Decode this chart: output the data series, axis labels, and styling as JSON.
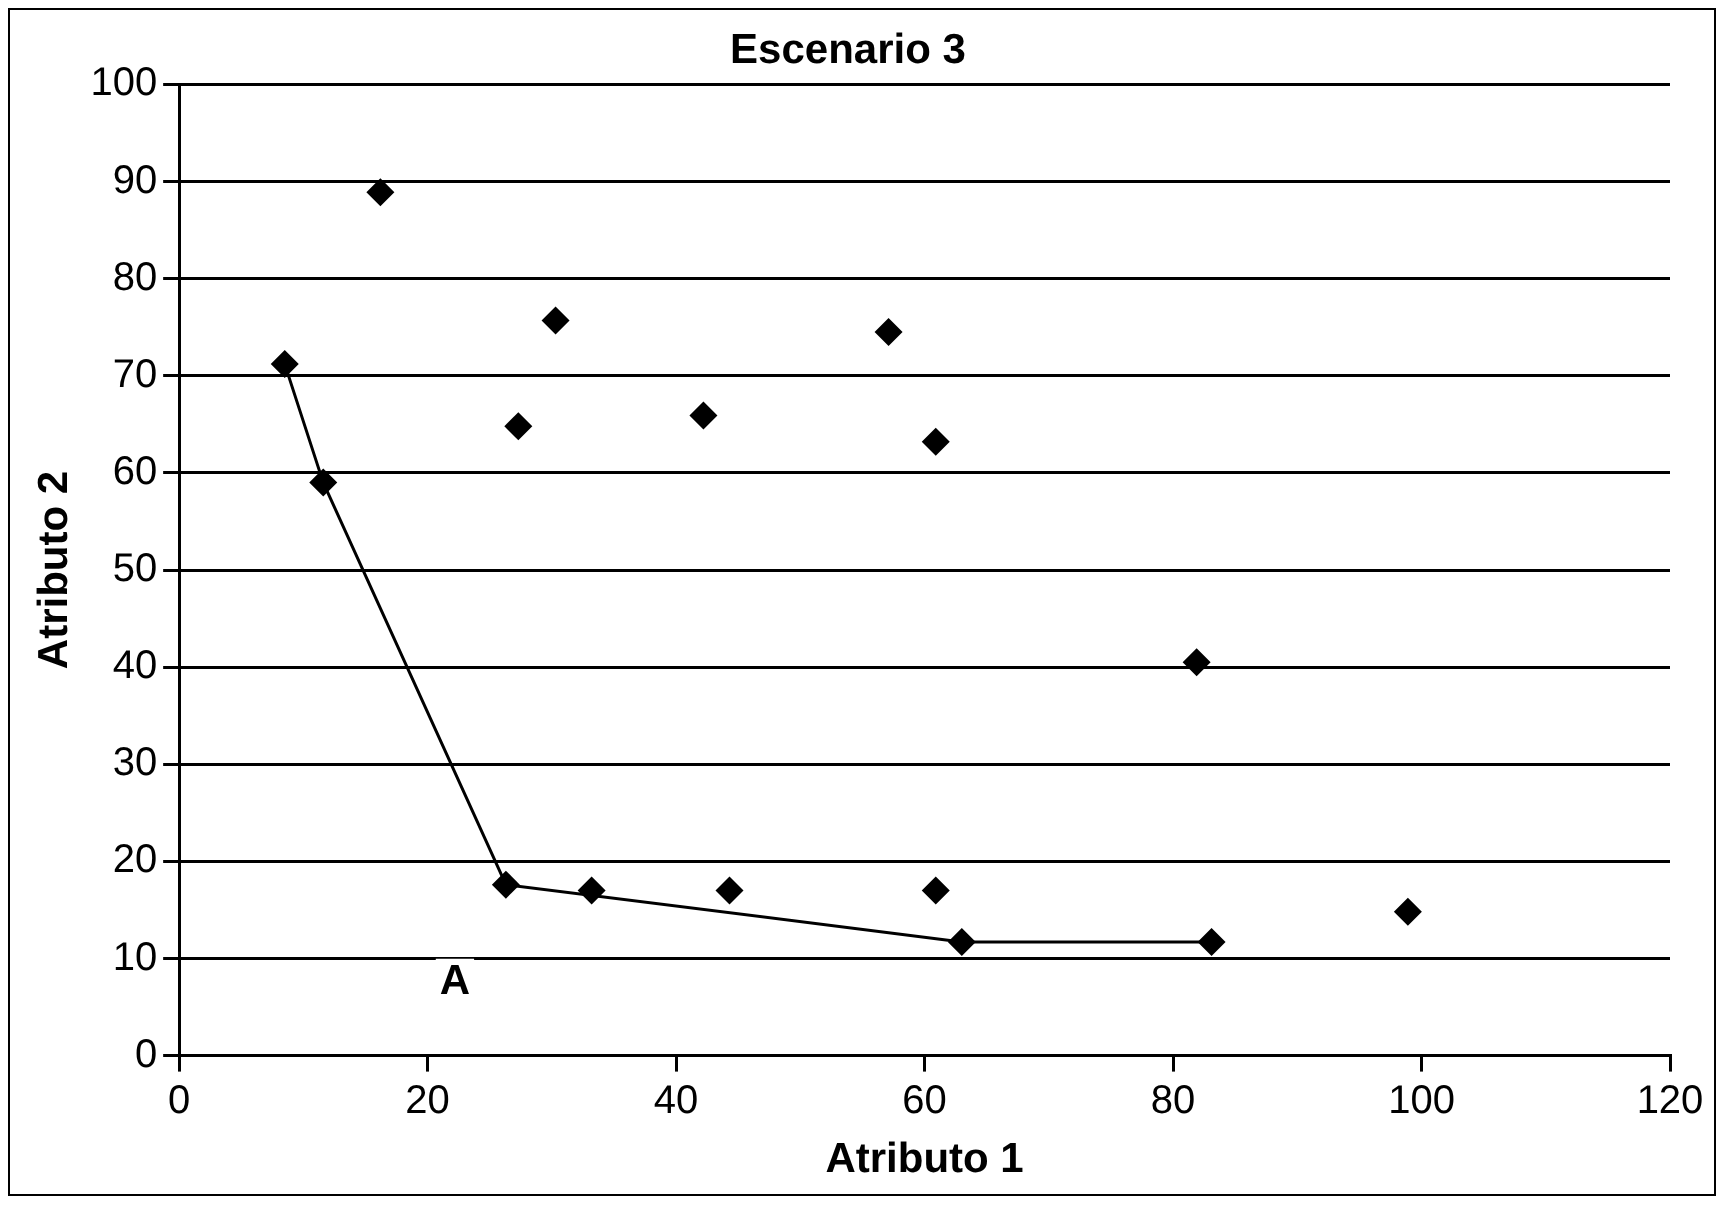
{
  "chart_data": {
    "type": "scatter",
    "title": "Escenario 3",
    "xlabel": "Atributo 1",
    "ylabel": "Atributo 2",
    "xlim": [
      0,
      120
    ],
    "xticks": [
      0,
      20,
      40,
      60,
      80,
      100,
      120
    ],
    "ylim": [
      0,
      100
    ],
    "yticks": [
      0,
      10,
      20,
      30,
      40,
      50,
      60,
      70,
      80,
      90,
      100
    ],
    "grid": "y",
    "legend": false,
    "marker": "diamond",
    "series": [
      {
        "type": "line",
        "color": "#000000",
        "x": [
          8.5,
          11.6,
          26.3,
          63,
          83.1
        ],
        "values": [
          71.2,
          59,
          17.6,
          11.7,
          11.7
        ]
      },
      {
        "type": "scatter",
        "color": "#000000",
        "x": [
          16.2,
          27.3,
          30.3,
          33.2,
          42.2,
          44.3,
          57.1,
          60.9,
          60.9,
          81.9,
          98.9
        ],
        "values": [
          88.9,
          64.8,
          75.7,
          17,
          65.9,
          17,
          74.5,
          63.2,
          17,
          40.5,
          14.8
        ]
      }
    ],
    "annotations": [
      "A"
    ]
  }
}
